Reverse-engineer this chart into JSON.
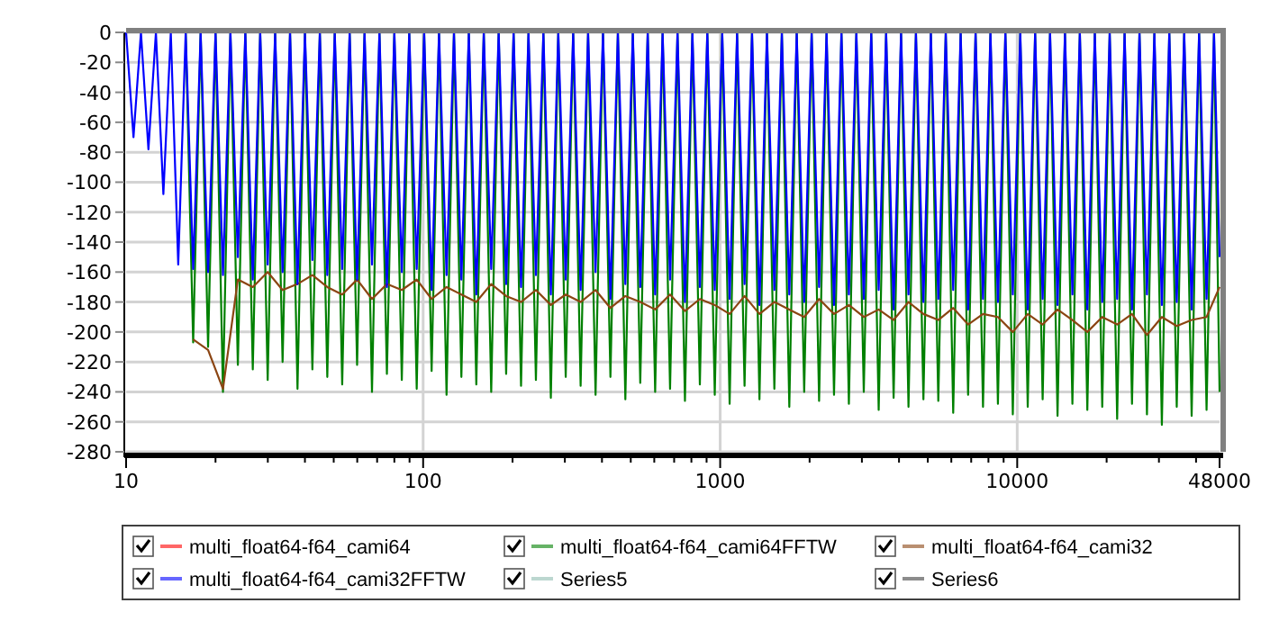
{
  "chart_data": {
    "type": "line",
    "log": "x",
    "grid": true,
    "legend": "bottom",
    "marker": "none",
    "line_style": "solid",
    "xlim": [
      10,
      48000
    ],
    "ylim": [
      -280,
      0
    ],
    "xticks": [
      10,
      {
        "value": 20,
        "label": null
      },
      {
        "value": 30,
        "label": null
      },
      {
        "value": 40,
        "label": null
      },
      {
        "value": 50,
        "label": null
      },
      {
        "value": 60,
        "label": null
      },
      {
        "value": 70,
        "label": null
      },
      {
        "value": 80,
        "label": null
      },
      {
        "value": 90,
        "label": null
      },
      100,
      {
        "value": 200,
        "label": null
      },
      {
        "value": 300,
        "label": null
      },
      {
        "value": 400,
        "label": null
      },
      {
        "value": 500,
        "label": null
      },
      {
        "value": 600,
        "label": null
      },
      {
        "value": 700,
        "label": null
      },
      {
        "value": 800,
        "label": null
      },
      {
        "value": 900,
        "label": null
      },
      1000,
      {
        "value": 2000,
        "label": null
      },
      {
        "value": 3000,
        "label": null
      },
      {
        "value": 4000,
        "label": null
      },
      {
        "value": 5000,
        "label": null
      },
      {
        "value": 6000,
        "label": null
      },
      {
        "value": 7000,
        "label": null
      },
      {
        "value": 8000,
        "label": null
      },
      {
        "value": 9000,
        "label": null
      },
      10000,
      {
        "value": 20000,
        "label": null
      },
      {
        "value": 30000,
        "label": null
      },
      {
        "value": 40000,
        "label": null
      },
      48000
    ],
    "yticks": [
      0,
      -20,
      -40,
      -60,
      -80,
      -100,
      -120,
      -140,
      -160,
      -180,
      -200,
      -220,
      -240,
      -260,
      -280
    ],
    "x": [
      10,
      10.59,
      11.22,
      11.89,
      12.6,
      13.35,
      14.14,
      14.98,
      15.87,
      16.82,
      17.82,
      18.88,
      20,
      21.19,
      22.45,
      23.78,
      25.2,
      26.7,
      28.28,
      29.97,
      31.75,
      33.64,
      35.64,
      37.76,
      40,
      42.38,
      44.9,
      47.57,
      50.4,
      53.4,
      56.57,
      59.93,
      63.5,
      67.27,
      71.27,
      75.51,
      80,
      84.76,
      89.8,
      95.14,
      100.8,
      106.8,
      113.1,
      119.9,
      127,
      134.5,
      142.5,
      151,
      160,
      169.5,
      179.6,
      190.3,
      201.6,
      213.6,
      226.3,
      239.7,
      254,
      269.1,
      285.1,
      302,
      320,
      339,
      359.2,
      380.6,
      403.2,
      427.1,
      452.5,
      479.5,
      508,
      538.2,
      570.2,
      604.1,
      640,
      678.1,
      718.4,
      761.1,
      806.3,
      854.3,
      905.1,
      958.9,
      1016,
      1076,
      1140,
      1208,
      1280,
      1356,
      1437,
      1522,
      1613,
      1709,
      1810,
      1918,
      2032,
      2153,
      2281,
      2417,
      2560,
      2712,
      2874,
      3044,
      3225,
      3417,
      3620,
      3836,
      4064,
      4305,
      4561,
      4833,
      5120,
      5424,
      5747,
      6089,
      6451,
      6834,
      7241,
      7671,
      8127,
      8611,
      9123,
      9665,
      10240,
      10850,
      11490,
      12180,
      12900,
      13670,
      14480,
      15340,
      16250,
      17220,
      18250,
      19330,
      20480,
      21700,
      22990,
      24350,
      25800,
      27340,
      28960,
      30690,
      32510,
      34440,
      36490,
      38660,
      40960,
      43400,
      45980,
      48000
    ],
    "series": [
      {
        "name": "multi_float64-f64_cami64",
        "color": "#ff0000",
        "values": [
          null,
          null,
          null,
          null,
          null,
          null,
          null,
          null,
          null,
          null,
          null,
          null,
          null,
          null,
          null,
          null,
          null,
          null,
          null,
          null,
          null,
          null,
          null,
          null,
          null,
          null,
          null,
          null,
          null,
          null,
          null,
          null,
          null,
          null,
          null,
          null,
          null,
          null,
          null,
          null,
          null,
          null,
          null,
          null,
          null,
          null,
          null,
          null,
          null,
          null,
          null,
          null,
          null,
          null,
          null,
          null,
          null,
          null,
          null,
          null,
          null,
          null,
          null,
          null,
          null,
          null,
          null,
          null,
          null,
          null,
          null,
          null,
          null,
          null,
          null,
          null,
          null,
          null,
          null,
          null,
          null,
          null,
          null,
          null,
          null,
          null,
          null,
          null,
          null,
          null,
          null,
          null,
          null,
          null,
          null,
          null,
          null,
          null,
          null,
          null,
          null,
          null,
          null,
          null,
          null,
          null,
          null,
          null,
          null,
          null,
          null,
          null,
          null,
          null,
          null,
          null,
          null,
          null,
          null,
          null,
          null,
          null,
          null,
          null,
          null,
          null,
          null,
          null,
          null,
          null,
          null,
          null,
          null,
          null,
          null,
          null,
          null,
          null,
          null,
          null,
          null,
          null,
          null,
          null,
          null,
          null,
          null,
          null
        ]
      },
      {
        "name": "multi_float64-f64_cami64FFTW",
        "color": "#008000",
        "values": [
          null,
          null,
          null,
          null,
          null,
          null,
          null,
          null,
          0,
          -207,
          0,
          -210,
          0,
          -240,
          0,
          -222,
          0,
          -225,
          0,
          -232,
          0,
          -220,
          0,
          -238,
          0,
          -225,
          0,
          -230,
          0,
          -235,
          0,
          -222,
          0,
          -240,
          0,
          -228,
          0,
          -232,
          0,
          -238,
          0,
          -226,
          0,
          -242,
          0,
          -230,
          0,
          -235,
          0,
          -240,
          0,
          -228,
          0,
          -236,
          0,
          -232,
          0,
          -244,
          0,
          -230,
          0,
          -236,
          0,
          -242,
          0,
          -230,
          0,
          -245,
          0,
          -234,
          0,
          -240,
          0,
          -238,
          0,
          -246,
          0,
          -235,
          0,
          -242,
          0,
          -248,
          0,
          -236,
          0,
          -245,
          0,
          -238,
          0,
          -250,
          0,
          -240,
          0,
          -246,
          0,
          -242,
          0,
          -248,
          0,
          -240,
          0,
          -252,
          0,
          -244,
          0,
          -250,
          0,
          -245,
          0,
          -246,
          0,
          -254,
          0,
          -242,
          0,
          -250,
          0,
          -248,
          0,
          -255,
          0,
          -250,
          0,
          -245,
          0,
          -256,
          0,
          -248,
          0,
          -252,
          0,
          -250,
          0,
          -258,
          0,
          -248,
          0,
          -255,
          0,
          -262,
          0,
          -250,
          0,
          -256,
          0,
          -252,
          0,
          -240
        ]
      },
      {
        "name": "multi_float64-f64_cami32",
        "color": "#8b4513",
        "x": [
          16.82,
          18.88,
          21.19,
          23.78,
          26.7,
          29.97,
          33.64,
          37.76,
          42.38,
          47.57,
          53.4,
          59.93,
          67.27,
          75.51,
          84.76,
          95.14,
          106.8,
          119.9,
          134.5,
          151,
          169.5,
          190.3,
          213.6,
          239.7,
          269.1,
          302,
          339,
          380.6,
          427.1,
          479.5,
          538.2,
          604.1,
          678.1,
          761.1,
          854.3,
          958.9,
          1076,
          1208,
          1356,
          1522,
          1709,
          1918,
          2153,
          2417,
          2712,
          3044,
          3417,
          3836,
          4305,
          4833,
          5424,
          6089,
          6834,
          7671,
          8611,
          9665,
          10850,
          12180,
          13670,
          15340,
          17220,
          19330,
          21700,
          24350,
          27340,
          30690,
          34440,
          38660,
          43400,
          48000
        ],
        "values": [
          -205,
          -212,
          -238,
          -165,
          -170,
          -160,
          -172,
          -168,
          -162,
          -170,
          -175,
          -165,
          -178,
          -168,
          -172,
          -165,
          -178,
          -170,
          -175,
          -180,
          -168,
          -176,
          -180,
          -172,
          -182,
          -175,
          -180,
          -172,
          -184,
          -176,
          -180,
          -185,
          -175,
          -186,
          -178,
          -182,
          -188,
          -176,
          -188,
          -180,
          -185,
          -190,
          -178,
          -188,
          -182,
          -190,
          -185,
          -192,
          -180,
          -188,
          -192,
          -184,
          -195,
          -188,
          -190,
          -200,
          -188,
          -195,
          -185,
          -192,
          -200,
          -190,
          -195,
          -188,
          -202,
          -190,
          -196,
          -192,
          -190,
          -170
        ]
      },
      {
        "name": "multi_float64-f64_cami32FFTW",
        "color": "#0000ff",
        "values": [
          0,
          -70,
          0,
          -78,
          0,
          -108,
          0,
          -155,
          0,
          -158,
          0,
          -160,
          0,
          -162,
          0,
          -150,
          0,
          -165,
          0,
          -155,
          0,
          -160,
          0,
          -168,
          0,
          -152,
          0,
          -162,
          0,
          -158,
          0,
          -165,
          0,
          -155,
          0,
          -170,
          0,
          -160,
          0,
          -158,
          0,
          -172,
          0,
          -162,
          0,
          -165,
          0,
          -175,
          0,
          -158,
          0,
          -168,
          0,
          -170,
          0,
          -162,
          0,
          -175,
          0,
          -165,
          0,
          -172,
          0,
          -160,
          0,
          -178,
          0,
          -168,
          0,
          -170,
          0,
          -175,
          0,
          -165,
          0,
          -180,
          0,
          -170,
          0,
          -172,
          0,
          -178,
          0,
          -168,
          0,
          -182,
          0,
          -172,
          0,
          -175,
          0,
          -180,
          0,
          -170,
          0,
          -182,
          0,
          -175,
          0,
          -178,
          0,
          -172,
          0,
          -185,
          0,
          -175,
          0,
          -180,
          0,
          -178,
          0,
          -172,
          0,
          -185,
          0,
          -178,
          0,
          -180,
          0,
          -175,
          0,
          -185,
          0,
          -178,
          0,
          -182,
          0,
          -175,
          0,
          -185,
          0,
          -180,
          0,
          -178,
          0,
          -185,
          0,
          -175,
          0,
          -182,
          0,
          -180,
          0,
          -185,
          0,
          -178,
          0,
          -150
        ]
      },
      {
        "name": "Series5",
        "color": "#8fbcb0",
        "values": [
          null,
          null,
          null,
          null,
          null,
          null,
          null,
          null,
          null,
          null,
          null,
          null,
          null,
          null,
          null,
          null,
          null,
          null,
          null,
          null,
          null,
          null,
          null,
          null,
          null,
          null,
          null,
          null,
          null,
          null,
          null,
          null,
          null,
          null,
          null,
          null,
          null,
          null,
          null,
          null,
          null,
          null,
          null,
          null,
          null,
          null,
          null,
          null,
          null,
          null,
          null,
          null,
          null,
          null,
          null,
          null,
          null,
          null,
          null,
          null,
          null,
          null,
          null,
          null,
          null,
          null,
          null,
          null,
          null,
          null,
          null,
          null,
          null,
          null,
          null,
          null,
          null,
          null,
          null,
          null,
          null,
          null,
          null,
          null,
          null,
          null,
          null,
          null,
          null,
          null,
          null,
          null,
          null,
          null,
          null,
          null,
          null,
          null,
          null,
          null,
          null,
          null,
          null,
          null,
          null,
          null,
          null,
          null,
          null,
          null,
          null,
          null,
          null,
          null,
          null,
          null,
          null,
          null,
          null,
          null,
          null,
          null,
          null,
          null,
          null,
          null,
          null,
          null,
          null,
          null,
          null,
          null,
          null,
          null,
          null,
          null,
          null,
          null,
          null,
          null,
          null,
          null,
          null,
          null,
          null,
          null,
          null,
          null
        ]
      },
      {
        "name": "Series6",
        "color": "#404040",
        "values": [
          null,
          null,
          null,
          null,
          null,
          null,
          null,
          null,
          null,
          null,
          null,
          null,
          null,
          null,
          null,
          null,
          null,
          null,
          null,
          null,
          null,
          null,
          null,
          null,
          null,
          null,
          null,
          null,
          null,
          null,
          null,
          null,
          null,
          null,
          null,
          null,
          null,
          null,
          null,
          null,
          null,
          null,
          null,
          null,
          null,
          null,
          null,
          null,
          null,
          null,
          null,
          null,
          null,
          null,
          null,
          null,
          null,
          null,
          null,
          null,
          null,
          null,
          null,
          null,
          null,
          null,
          null,
          null,
          null,
          null,
          null,
          null,
          null,
          null,
          null,
          null,
          null,
          null,
          null,
          null,
          null,
          null,
          null,
          null,
          null,
          null,
          null,
          null,
          null,
          null,
          null,
          null,
          null,
          null,
          null,
          null,
          null,
          null,
          null,
          null,
          null,
          null,
          null,
          null,
          null,
          null,
          null,
          null,
          null,
          null,
          null,
          null,
          null,
          null,
          null,
          null,
          null,
          null,
          null,
          null,
          null,
          null,
          null,
          null,
          null,
          null,
          null,
          null,
          null,
          null,
          null,
          null,
          null,
          null,
          null,
          null,
          null,
          null,
          null,
          null,
          null,
          null,
          null,
          null,
          null,
          null,
          null,
          null
        ]
      }
    ]
  }
}
